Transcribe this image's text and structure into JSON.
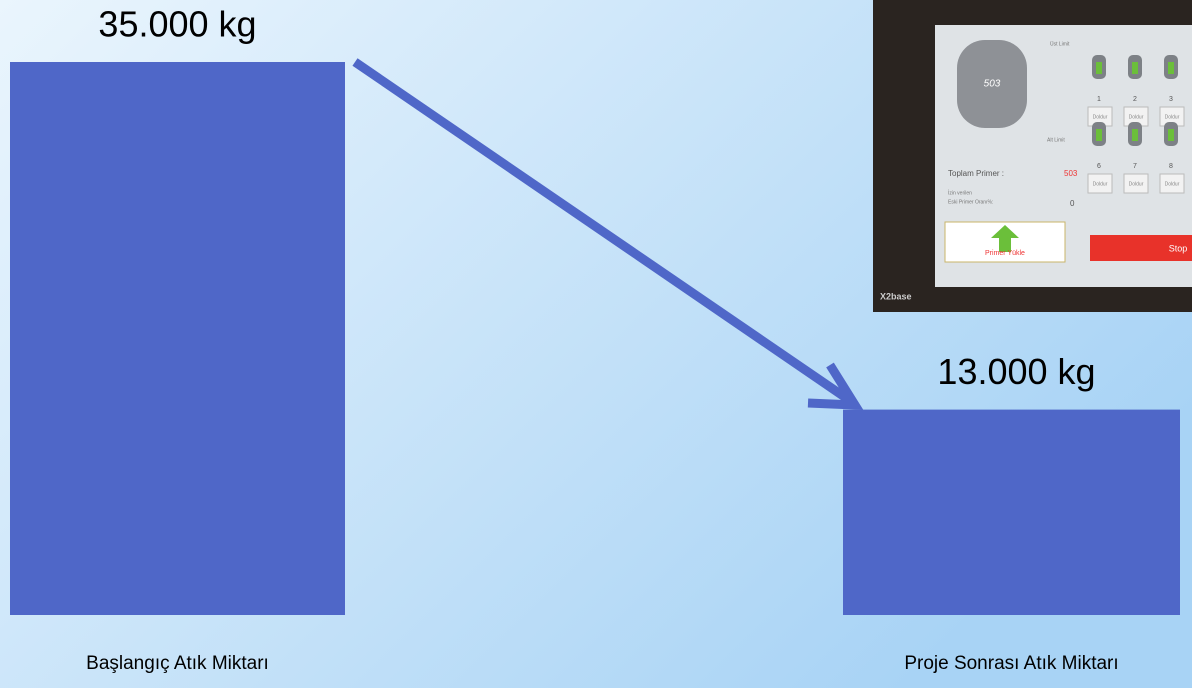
{
  "chart_data": {
    "type": "bar",
    "categories": [
      "Başlangıç Atık Miktarı",
      "Proje Sonrası Atık Miktarı"
    ],
    "values": [
      35000,
      13000
    ],
    "value_labels": [
      "35.000 kg",
      "13.000 kg"
    ],
    "color": "#4f67c8"
  },
  "photo": {
    "tank_value": "503",
    "upper_limit": "Üst Limit",
    "lower_limit": "Alt Limit",
    "total_label": "Toplam Primer :",
    "total_value": "503",
    "ratio_label_1": "İzin verilen",
    "ratio_label_2": "Eski Primer Oranı%:",
    "ratio_value": "0",
    "load_button": "Primer Yükle",
    "stop_button": "Stop",
    "brand": "X2base",
    "tank_numbers": [
      "1",
      "2",
      "3",
      "6",
      "7",
      "8"
    ],
    "fill_buttons": [
      "Doldur",
      "Doldur",
      "Doldur",
      "Doldur",
      "Doldur",
      "Doldur"
    ]
  }
}
